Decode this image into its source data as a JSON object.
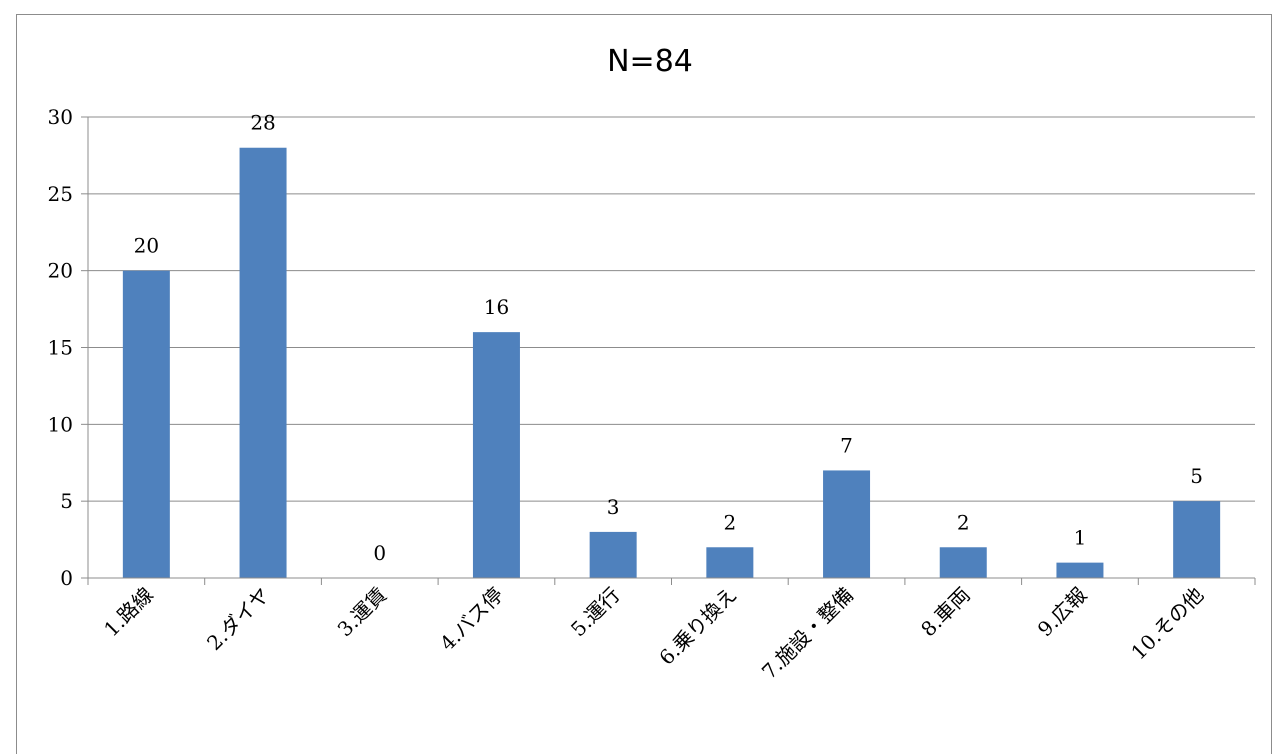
{
  "chart_data": {
    "type": "bar",
    "title": "N=84",
    "categories": [
      "1.路線",
      "2.ダイヤ",
      "3.運賃",
      "4.バス停",
      "5.運行",
      "6.乗り換え",
      "7.施設・整備",
      "8.車両",
      "9.広報",
      "10.その他"
    ],
    "values": [
      20,
      28,
      0,
      16,
      3,
      2,
      7,
      2,
      1,
      5
    ],
    "ylim": [
      0,
      30
    ],
    "yticks": [
      0,
      5,
      10,
      15,
      20,
      25,
      30
    ],
    "grid": true,
    "data_labels": true,
    "bar_color": "#4f81bd",
    "xlabel": "",
    "ylabel": ""
  }
}
